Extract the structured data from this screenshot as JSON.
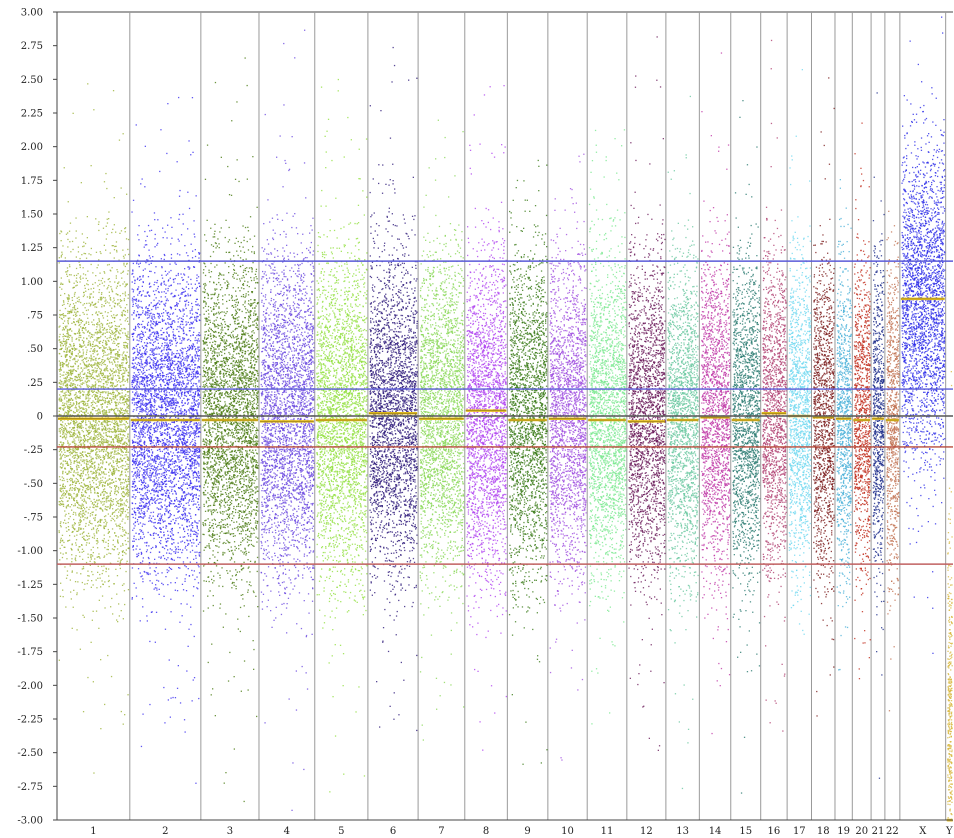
{
  "chart_data": {
    "type": "scatter",
    "title": "",
    "xlabel": "",
    "ylabel": "",
    "ylim": [
      -3.0,
      3.0
    ],
    "yticks": [
      {
        "value": 3.0,
        "label": "3.00"
      },
      {
        "value": 2.75,
        "label": "2.75"
      },
      {
        "value": 2.5,
        "label": "2.50"
      },
      {
        "value": 2.25,
        "label": "2.25"
      },
      {
        "value": 2.0,
        "label": "2.00"
      },
      {
        "value": 1.75,
        "label": "1.75"
      },
      {
        "value": 1.5,
        "label": "1.50"
      },
      {
        "value": 1.25,
        "label": "1.25"
      },
      {
        "value": 1.0,
        "label": "1.00"
      },
      {
        "value": 0.75,
        "label": ".75"
      },
      {
        "value": 0.5,
        "label": ".50"
      },
      {
        "value": 0.25,
        "label": ".25"
      },
      {
        "value": 0.0,
        "label": "0"
      },
      {
        "value": -0.25,
        "label": "-.25"
      },
      {
        "value": -0.5,
        "label": "-.50"
      },
      {
        "value": -0.75,
        "label": "-.75"
      },
      {
        "value": -1.0,
        "label": "-1.00"
      },
      {
        "value": -1.25,
        "label": "-1.25"
      },
      {
        "value": -1.5,
        "label": "-1.50"
      },
      {
        "value": -1.75,
        "label": "-1.75"
      },
      {
        "value": -2.0,
        "label": "-2.00"
      },
      {
        "value": -2.25,
        "label": "-2.25"
      },
      {
        "value": -2.5,
        "label": "-2.50"
      },
      {
        "value": -2.75,
        "label": "-2.75"
      },
      {
        "value": -3.0,
        "label": "-3.00"
      }
    ],
    "grid": false,
    "reference_lines": [
      {
        "value": 1.15,
        "color": "#5a5ad8"
      },
      {
        "value": 0.2,
        "color": "#5a5ad8"
      },
      {
        "value": 0.0,
        "color": "#555555"
      },
      {
        "value": -0.23,
        "color": "#b84a3a"
      },
      {
        "value": -1.1,
        "color": "#c06060"
      }
    ],
    "segment_color": "#e8c020",
    "chromosomes": [
      {
        "label": "1",
        "size": 248,
        "color": "#9cb43a",
        "center": 0.0,
        "spread": 0.56,
        "segment": -0.02
      },
      {
        "label": "2",
        "size": 242,
        "color": "#3a2ef0",
        "center": 0.0,
        "spread": 0.56,
        "segment": -0.03
      },
      {
        "label": "3",
        "size": 198,
        "color": "#4a7a12",
        "center": 0.0,
        "spread": 0.56,
        "segment": -0.03
      },
      {
        "label": "4",
        "size": 190,
        "color": "#6a48e0",
        "center": 0.0,
        "spread": 0.56,
        "segment": -0.04
      },
      {
        "label": "5",
        "size": 181,
        "color": "#92e040",
        "center": 0.0,
        "spread": 0.56,
        "segment": -0.03
      },
      {
        "label": "6",
        "size": 171,
        "color": "#2e1a7a",
        "center": 0.0,
        "spread": 0.56,
        "segment": 0.02
      },
      {
        "label": "7",
        "size": 159,
        "color": "#8ad858",
        "center": 0.0,
        "spread": 0.56,
        "segment": -0.02
      },
      {
        "label": "8",
        "size": 145,
        "color": "#b044f0",
        "center": 0.0,
        "spread": 0.56,
        "segment": 0.04
      },
      {
        "label": "9",
        "size": 138,
        "color": "#3a7a18",
        "center": 0.0,
        "spread": 0.56,
        "segment": -0.03
      },
      {
        "label": "10",
        "size": 134,
        "color": "#a050e0",
        "center": 0.0,
        "spread": 0.56,
        "segment": -0.02
      },
      {
        "label": "11",
        "size": 135,
        "color": "#7ae890",
        "center": 0.0,
        "spread": 0.56,
        "segment": -0.03
      },
      {
        "label": "12",
        "size": 133,
        "color": "#6a1a5a",
        "center": 0.0,
        "spread": 0.56,
        "segment": -0.04
      },
      {
        "label": "13",
        "size": 114,
        "color": "#6ac8a0",
        "center": 0.0,
        "spread": 0.56,
        "segment": -0.03
      },
      {
        "label": "14",
        "size": 107,
        "color": "#c03aa8",
        "center": 0.0,
        "spread": 0.56,
        "segment": -0.01
      },
      {
        "label": "15",
        "size": 102,
        "color": "#2a7a70",
        "center": 0.0,
        "spread": 0.56,
        "segment": -0.03
      },
      {
        "label": "16",
        "size": 90,
        "color": "#b04070",
        "center": 0.0,
        "spread": 0.56,
        "segment": 0.02
      },
      {
        "label": "17",
        "size": 83,
        "color": "#70d8f0",
        "center": 0.0,
        "spread": 0.56,
        "segment": 0.0
      },
      {
        "label": "18",
        "size": 80,
        "color": "#7a1a1a",
        "center": 0.0,
        "spread": 0.56,
        "segment": -0.01
      },
      {
        "label": "19",
        "size": 59,
        "color": "#4ab0d8",
        "center": 0.0,
        "spread": 0.56,
        "segment": -0.02
      },
      {
        "label": "20",
        "size": 64,
        "color": "#c02a1a",
        "center": 0.0,
        "spread": 0.56,
        "segment": -0.03
      },
      {
        "label": "21",
        "size": 47,
        "color": "#1a2a8a",
        "center": 0.0,
        "spread": 0.56,
        "segment": -0.02
      },
      {
        "label": "22",
        "size": 51,
        "color": "#c07050",
        "center": 0.0,
        "spread": 0.56,
        "segment": -0.03
      },
      {
        "label": "X",
        "size": 156,
        "color": "#2a2ae8",
        "center": 0.85,
        "spread": 0.56,
        "segment": 0.87
      },
      {
        "label": "Y",
        "size": 25,
        "color": "#d8b840",
        "center": -2.2,
        "spread": 0.6,
        "segment": -3.0
      }
    ]
  }
}
